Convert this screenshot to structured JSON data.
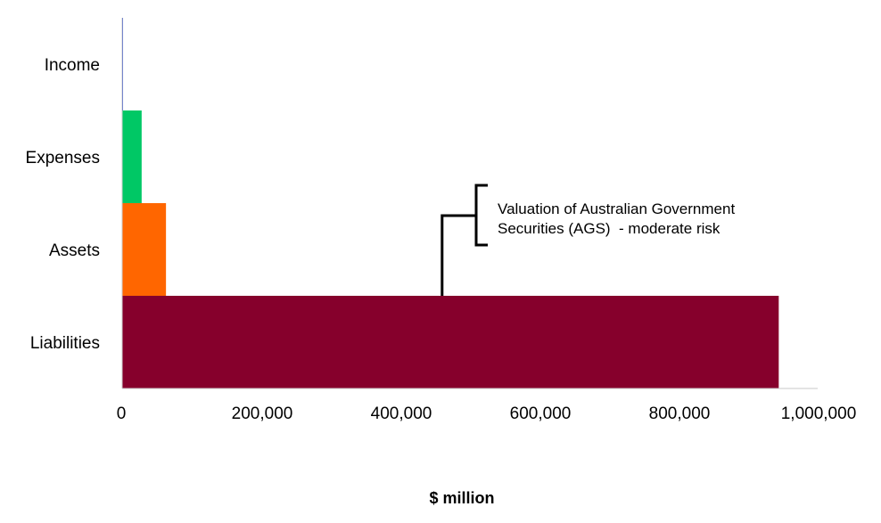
{
  "chart_data": {
    "type": "bar",
    "orientation": "horizontal",
    "categories": [
      "Income",
      "Expenses",
      "Assets",
      "Liabilities"
    ],
    "values": [
      800,
      28000,
      63000,
      944000
    ],
    "colors": [
      "#1f3fcf",
      "#00c865",
      "#ff6600",
      "#86002c"
    ],
    "xlabel": "$ million",
    "xlim": [
      0,
      1000000
    ],
    "xticks": [
      0,
      200000,
      400000,
      600000,
      800000,
      1000000
    ],
    "xtick_labels": [
      "0",
      "200,000",
      "400,000",
      "600,000",
      "800,000",
      "1,000,000"
    ],
    "grid": false,
    "annotation": {
      "lines": [
        "Valuation of Australian Government",
        "Securities (AGS)  - moderate risk"
      ],
      "x": 460000,
      "category": "Liabilities"
    }
  }
}
